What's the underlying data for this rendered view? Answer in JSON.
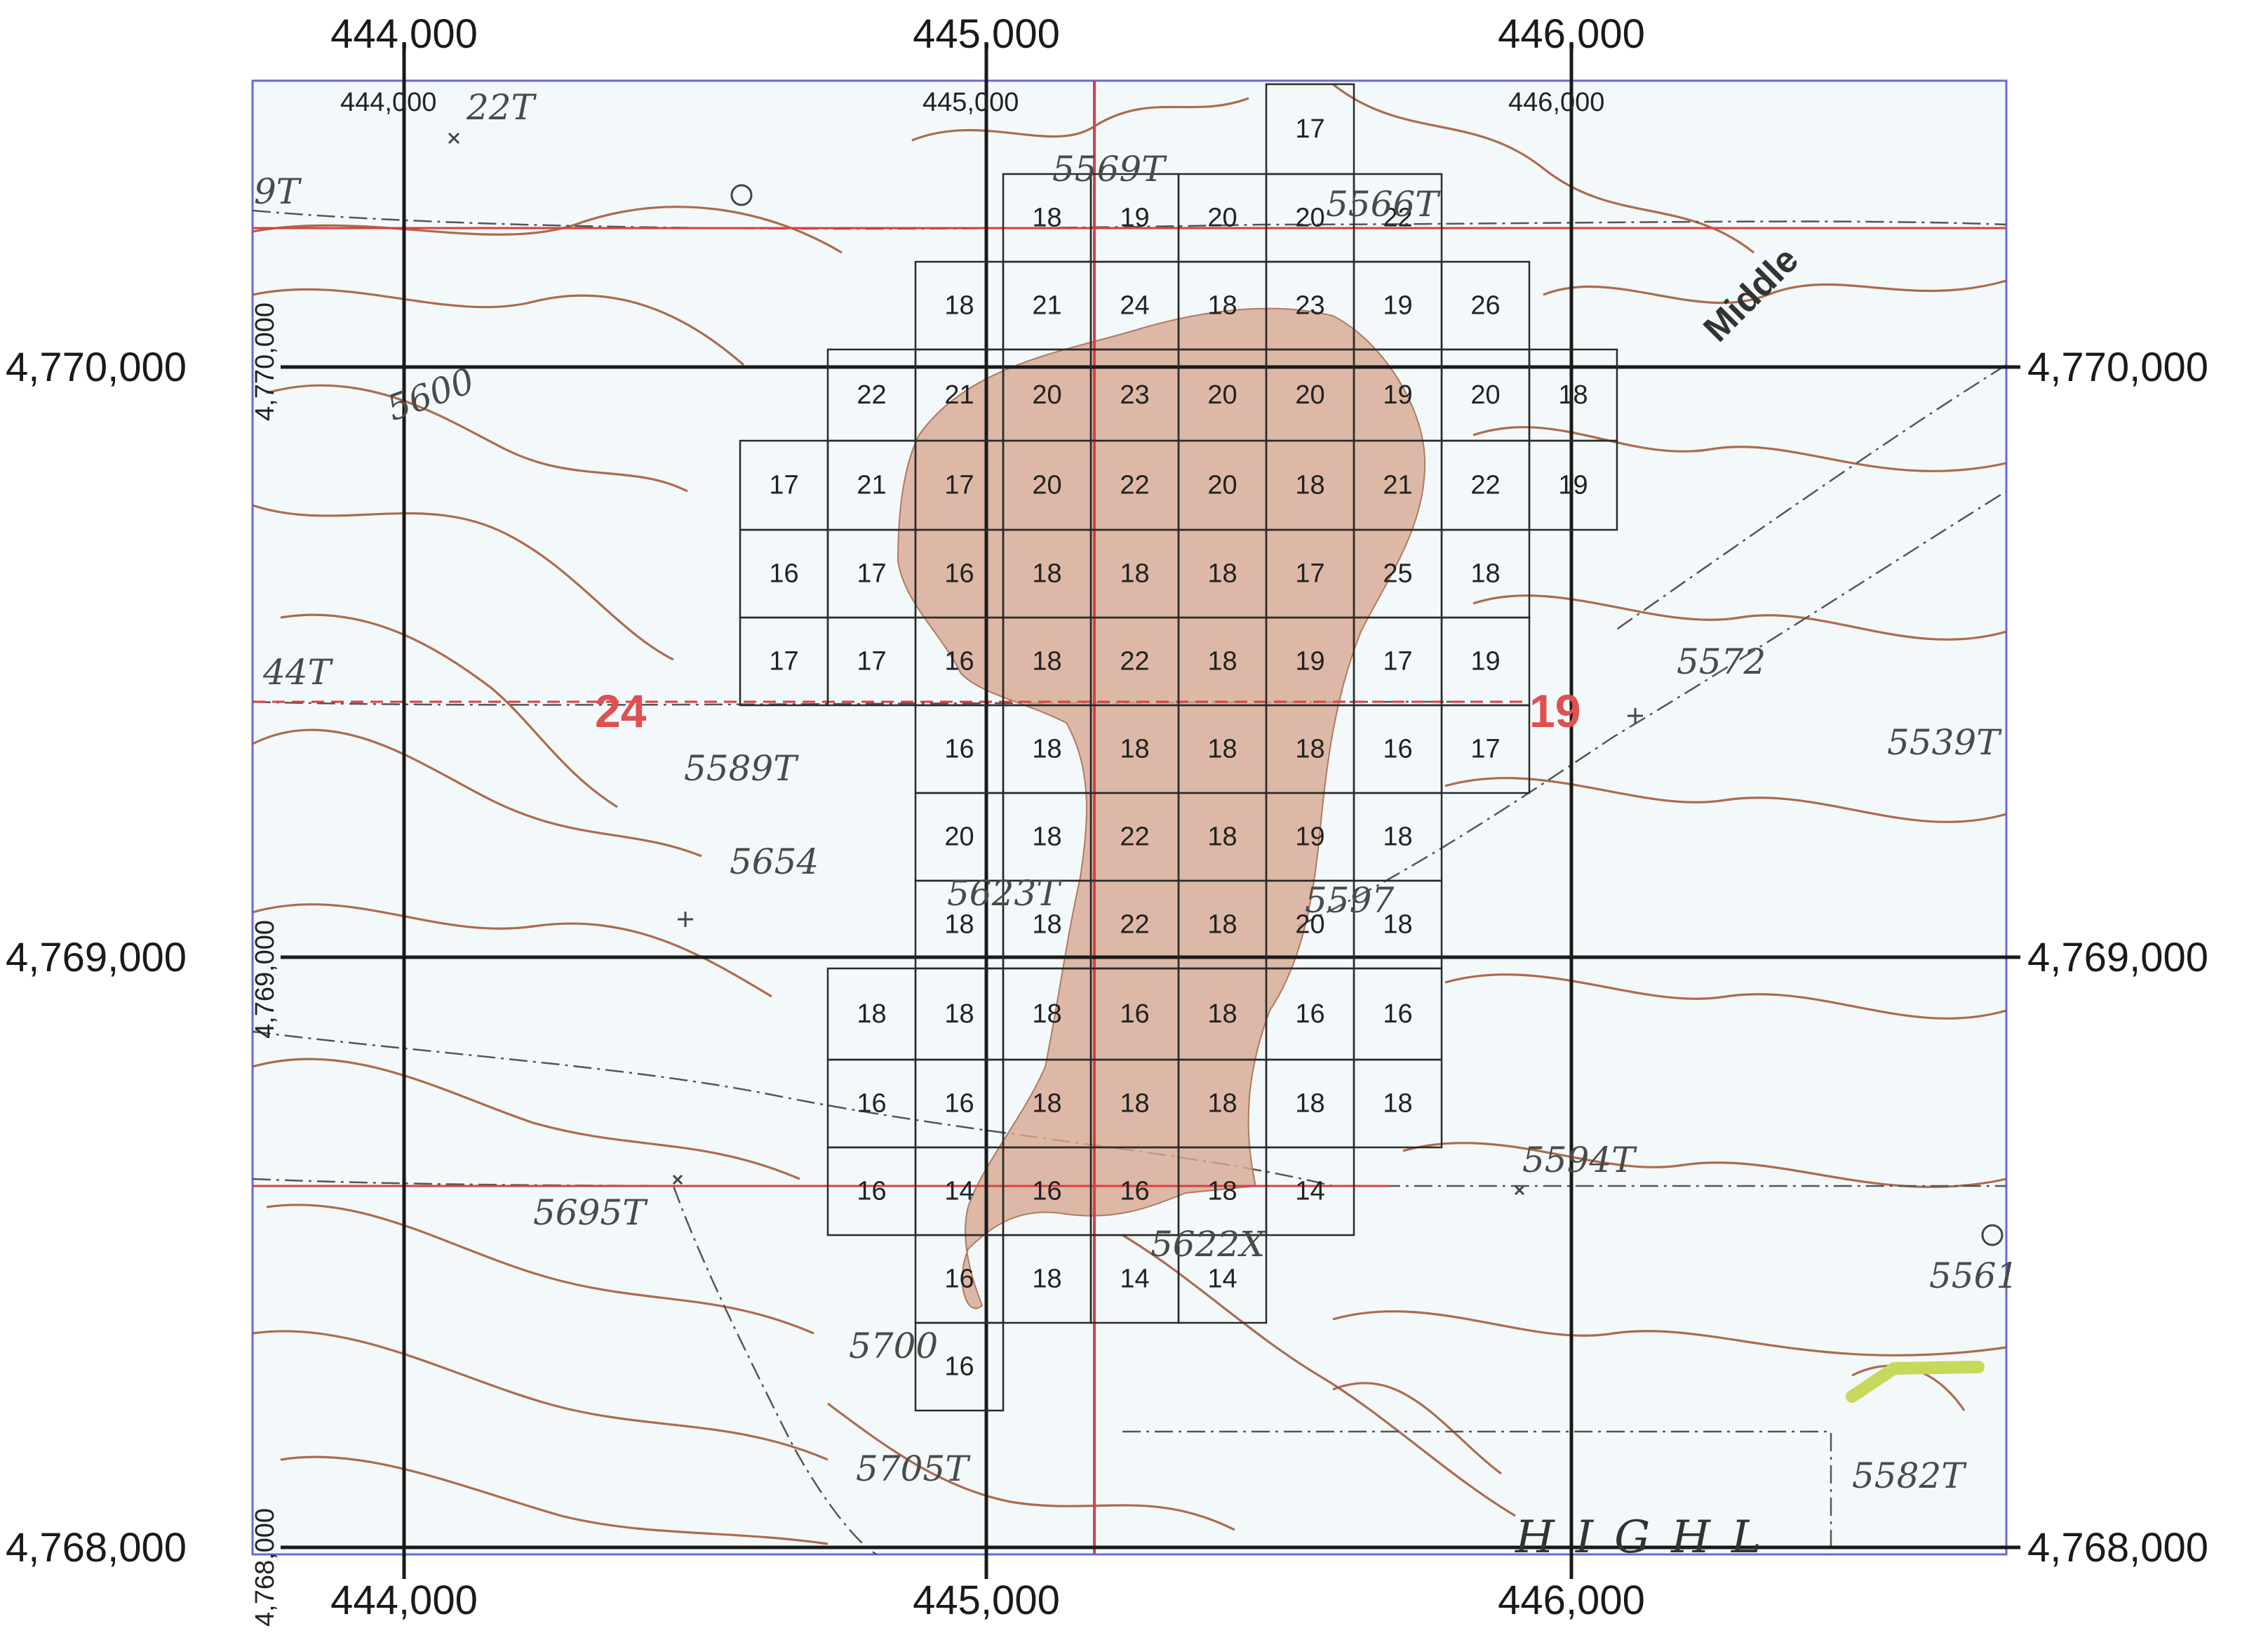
{
  "map": {
    "easting_labels": [
      "444,000",
      "445,000",
      "446,000"
    ],
    "northing_labels": [
      "4,770,000",
      "4,769,000",
      "4,768,000"
    ],
    "inner_easting_labels": [
      "444,000",
      "445,000",
      "446,000"
    ],
    "inner_northing_labels": [
      "4,770,000",
      "4,769,000",
      "4,768,000"
    ],
    "section_numbers": [
      "24",
      "19"
    ],
    "feature_label": "Middle",
    "partial_label": "HIGHL",
    "elevation_labels": [
      "5569T",
      "5566T",
      "5572",
      "5539T",
      "5589T",
      "5654",
      "5623T",
      "5597",
      "5594T",
      "5695T",
      "5622X",
      "5700",
      "5705T",
      "5582T",
      "5561",
      "5600",
      "44T",
      "22T",
      "9T"
    ],
    "colors": {
      "contour": "#a0522d",
      "shaded_area": "#d8aa92",
      "grid": "#1a1a1a",
      "section_line": "#d94040",
      "section_label": "#e05050",
      "map_background": "#f3f9fb"
    },
    "cells": [
      [
        "17"
      ],
      [
        "18",
        "19",
        "20",
        "20",
        "22"
      ],
      [
        "18",
        "21",
        "24",
        "18",
        "23",
        "19",
        "26"
      ],
      [
        "22",
        "21",
        "20",
        "23",
        "20",
        "20",
        "19",
        "20",
        "18"
      ],
      [
        "17",
        "21",
        "17",
        "20",
        "22",
        "20",
        "18",
        "21",
        "22",
        "19"
      ],
      [
        "16",
        "17",
        "16",
        "18",
        "18",
        "18",
        "17",
        "25",
        "18"
      ],
      [
        "17",
        "17",
        "16",
        "18",
        "22",
        "18",
        "19",
        "17",
        "19"
      ],
      [
        "16",
        "18",
        "18",
        "18",
        "18",
        "16",
        "17"
      ],
      [
        "20",
        "18",
        "22",
        "18",
        "19",
        "18"
      ],
      [
        "18",
        "18",
        "22",
        "18",
        "20",
        "18"
      ],
      [
        "18",
        "18",
        "18",
        "16",
        "18",
        "16",
        "16"
      ],
      [
        "16",
        "16",
        "18",
        "18",
        "18",
        "18",
        "18"
      ],
      [
        "16",
        "14",
        "16",
        "16",
        "18",
        "14"
      ],
      [
        "16",
        "18",
        "14",
        "14"
      ],
      [
        "16"
      ]
    ]
  }
}
